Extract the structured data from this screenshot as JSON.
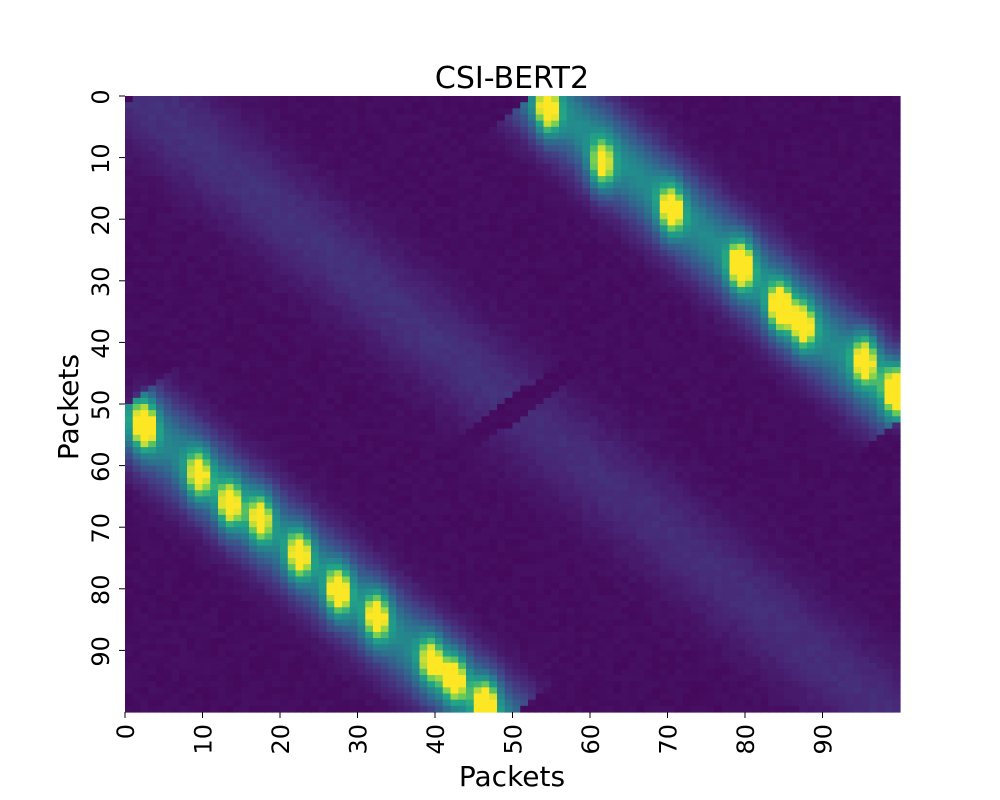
{
  "chart_data": {
    "type": "heatmap",
    "title": "CSI-BERT2",
    "xlabel": "Packets",
    "ylabel": "Packets",
    "rows": 100,
    "cols": 100,
    "x_ticks": [
      "0",
      "10",
      "20",
      "30",
      "40",
      "50",
      "60",
      "70",
      "80",
      "90"
    ],
    "y_ticks": [
      "0",
      "10",
      "20",
      "30",
      "40",
      "50",
      "60",
      "70",
      "80",
      "90"
    ],
    "colormap": "viridis",
    "colorbar": false,
    "value_range": [
      0,
      1
    ],
    "bands": [
      {
        "description": "main diagonal band, upper-right",
        "start": [
          0,
          54
        ],
        "end": [
          50,
          100
        ],
        "peak": 1.0
      },
      {
        "description": "main diagonal band, lower-left",
        "start": [
          51,
          0
        ],
        "end": [
          100,
          47
        ],
        "peak": 0.95
      },
      {
        "description": "faint secondary band, upper-left",
        "start": [
          0,
          2
        ],
        "end": [
          48,
          48
        ],
        "peak": 0.25
      },
      {
        "description": "faint secondary band, lower-right",
        "start": [
          52,
          52
        ],
        "end": [
          100,
          98
        ],
        "peak": 0.22
      }
    ],
    "hotspots": [
      {
        "row": 2,
        "col": 54,
        "value": 0.85
      },
      {
        "row": 11,
        "col": 61,
        "value": 0.8
      },
      {
        "row": 18,
        "col": 70,
        "value": 0.85
      },
      {
        "row": 27,
        "col": 79,
        "value": 0.98
      },
      {
        "row": 34,
        "col": 84,
        "value": 0.95
      },
      {
        "row": 37,
        "col": 87,
        "value": 0.8
      },
      {
        "row": 42,
        "col": 95,
        "value": 0.9
      },
      {
        "row": 47,
        "col": 99,
        "value": 1.0
      },
      {
        "row": 53,
        "col": 2,
        "value": 1.0
      },
      {
        "row": 61,
        "col": 9,
        "value": 0.8
      },
      {
        "row": 66,
        "col": 13,
        "value": 0.85
      },
      {
        "row": 68,
        "col": 17,
        "value": 0.8
      },
      {
        "row": 74,
        "col": 22,
        "value": 0.85
      },
      {
        "row": 80,
        "col": 27,
        "value": 0.9
      },
      {
        "row": 84,
        "col": 32,
        "value": 0.85
      },
      {
        "row": 91,
        "col": 39,
        "value": 0.75
      },
      {
        "row": 94,
        "col": 42,
        "value": 0.85
      },
      {
        "row": 98,
        "col": 46,
        "value": 0.95
      }
    ]
  }
}
